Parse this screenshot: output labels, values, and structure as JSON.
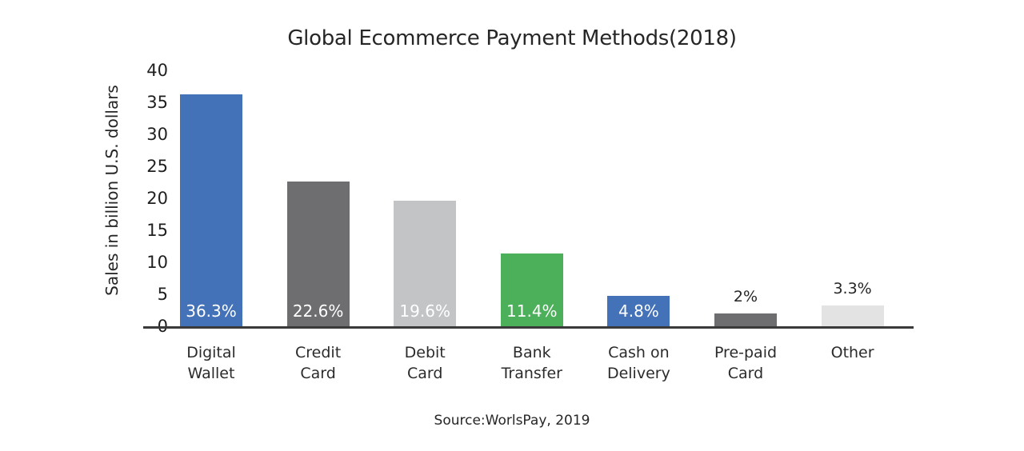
{
  "chart_data": {
    "type": "bar",
    "title": "Global Ecommerce Payment Methods(2018)",
    "categories": [
      "Digital Wallet",
      "Credit Card",
      "Debit Card",
      "Bank Transfer",
      "Cash on Delivery",
      "Pre-paid Card",
      "Other"
    ],
    "x_tick_labels": [
      "Digital\nWallet",
      "Credit\nCard",
      "Debit\nCard",
      "Bank\nTransfer",
      "Cash on\nDelivery",
      "Pre-paid\nCard",
      "Other"
    ],
    "values": [
      36.3,
      22.6,
      19.6,
      11.4,
      4.8,
      2,
      3.3
    ],
    "value_labels": [
      "36.3%",
      "22.6%",
      "19.6%",
      "11.4%",
      "4.8%",
      "2%",
      "3.3%"
    ],
    "value_label_positions": [
      "inside",
      "inside",
      "inside",
      "inside",
      "inside",
      "above",
      "above"
    ],
    "bar_colors": [
      "#4472B9",
      "#6E6E70",
      "#C3C4C6",
      "#4CAF5A",
      "#4472B9",
      "#6E6E70",
      "#E3E3E4"
    ],
    "inside_label_color": "#ffffff",
    "above_label_color": "#262626",
    "xlabel": "",
    "ylabel": "Sales in billion U.S. dollars",
    "ylim": [
      0,
      40
    ],
    "yticks": [
      0,
      5,
      10,
      15,
      20,
      25,
      30,
      35,
      40
    ],
    "grid": false,
    "legend": false,
    "source": "Source:WorlsPay, 2019"
  }
}
